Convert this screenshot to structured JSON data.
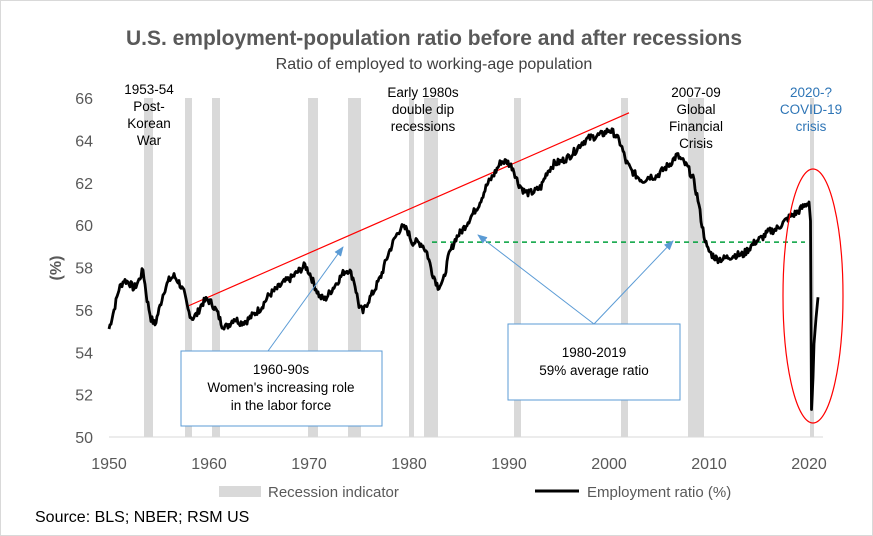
{
  "chart_data": {
    "type": "line",
    "title": "U.S. employment-population ratio before and after recessions",
    "subtitle": "Ratio of employed to working-age population",
    "ylabel": "(%)",
    "xlabel": "",
    "xlim": [
      1950,
      2021
    ],
    "ylim": [
      50,
      66
    ],
    "x_ticks": [
      "1950",
      "1960",
      "1970",
      "1980",
      "1990",
      "2000",
      "2010",
      "2020"
    ],
    "y_ticks": [
      "50",
      "52",
      "54",
      "56",
      "58",
      "60",
      "62",
      "64",
      "66"
    ],
    "grid": false,
    "legend_position": "bottom",
    "legend": {
      "recession": "Recession indicator",
      "ratio": "Employment ratio (%)"
    },
    "source": "Source: BLS; NBER; RSM US",
    "colors": {
      "line": "#000000",
      "recession": "#d9d9d9",
      "trend": "#ff0000",
      "average": "#00a03c",
      "arrow": "#5b9bd5",
      "covid_text": "#2e75b6",
      "ellipse": "#ff0000"
    },
    "recessions": [
      [
        1953.5,
        1954.4
      ],
      [
        1957.6,
        1958.3
      ],
      [
        1960.3,
        1961.1
      ],
      [
        1969.9,
        1970.9
      ],
      [
        1973.9,
        1975.2
      ],
      [
        1980.0,
        1980.5
      ],
      [
        1981.5,
        1982.9
      ],
      [
        1990.5,
        1991.2
      ],
      [
        2001.2,
        2001.9
      ],
      [
        2007.9,
        2009.5
      ],
      [
        2020.1,
        2020.4
      ]
    ],
    "series": [
      {
        "name": "Employment ratio (%)",
        "points": [
          [
            1950.0,
            55.1
          ],
          [
            1950.5,
            56.0
          ],
          [
            1951.0,
            57.0
          ],
          [
            1951.5,
            57.4
          ],
          [
            1952.0,
            57.3
          ],
          [
            1952.5,
            57.0
          ],
          [
            1953.0,
            57.4
          ],
          [
            1953.4,
            57.9
          ],
          [
            1953.8,
            56.5
          ],
          [
            1954.2,
            55.6
          ],
          [
            1954.6,
            55.3
          ],
          [
            1955.0,
            56.0
          ],
          [
            1955.5,
            56.9
          ],
          [
            1956.0,
            57.4
          ],
          [
            1956.5,
            57.6
          ],
          [
            1957.0,
            57.3
          ],
          [
            1957.5,
            56.8
          ],
          [
            1957.9,
            56.0
          ],
          [
            1958.3,
            55.6
          ],
          [
            1958.8,
            55.8
          ],
          [
            1959.3,
            56.3
          ],
          [
            1959.8,
            56.5
          ],
          [
            1960.3,
            56.3
          ],
          [
            1960.8,
            55.9
          ],
          [
            1961.3,
            55.3
          ],
          [
            1961.8,
            55.2
          ],
          [
            1962.5,
            55.6
          ],
          [
            1963.2,
            55.4
          ],
          [
            1963.8,
            55.5
          ],
          [
            1964.5,
            55.8
          ],
          [
            1965.2,
            56.1
          ],
          [
            1966.0,
            56.7
          ],
          [
            1966.8,
            57.0
          ],
          [
            1967.5,
            57.3
          ],
          [
            1968.2,
            57.5
          ],
          [
            1968.9,
            57.8
          ],
          [
            1969.6,
            58.1
          ],
          [
            1970.1,
            57.7
          ],
          [
            1970.6,
            57.1
          ],
          [
            1971.1,
            56.6
          ],
          [
            1971.6,
            56.5
          ],
          [
            1972.2,
            56.9
          ],
          [
            1972.8,
            57.3
          ],
          [
            1973.5,
            57.8
          ],
          [
            1974.0,
            57.9
          ],
          [
            1974.5,
            57.4
          ],
          [
            1975.0,
            56.2
          ],
          [
            1975.4,
            55.9
          ],
          [
            1975.9,
            56.4
          ],
          [
            1976.5,
            56.9
          ],
          [
            1977.2,
            57.6
          ],
          [
            1977.9,
            58.6
          ],
          [
            1978.6,
            59.4
          ],
          [
            1979.2,
            59.9
          ],
          [
            1979.8,
            59.8
          ],
          [
            1980.3,
            59.2
          ],
          [
            1980.8,
            59.2
          ],
          [
            1981.3,
            59.1
          ],
          [
            1981.8,
            58.7
          ],
          [
            1982.3,
            57.8
          ],
          [
            1982.9,
            57.1
          ],
          [
            1983.4,
            57.3
          ],
          [
            1984.0,
            58.6
          ],
          [
            1984.7,
            59.4
          ],
          [
            1985.4,
            59.8
          ],
          [
            1986.2,
            60.4
          ],
          [
            1987.0,
            61.0
          ],
          [
            1987.8,
            61.9
          ],
          [
            1988.5,
            62.4
          ],
          [
            1989.2,
            63.0
          ],
          [
            1989.8,
            63.0
          ],
          [
            1990.4,
            62.7
          ],
          [
            1990.9,
            62.0
          ],
          [
            1991.5,
            61.6
          ],
          [
            1992.0,
            61.5
          ],
          [
            1992.6,
            61.6
          ],
          [
            1993.2,
            61.8
          ],
          [
            1993.8,
            62.5
          ],
          [
            1994.5,
            62.9
          ],
          [
            1995.2,
            63.0
          ],
          [
            1995.9,
            63.2
          ],
          [
            1996.6,
            63.5
          ],
          [
            1997.3,
            63.9
          ],
          [
            1998.0,
            64.1
          ],
          [
            1998.7,
            64.2
          ],
          [
            1999.4,
            64.3
          ],
          [
            2000.0,
            64.5
          ],
          [
            2000.6,
            64.3
          ],
          [
            2001.2,
            63.8
          ],
          [
            2001.7,
            63.0
          ],
          [
            2002.2,
            62.6
          ],
          [
            2002.8,
            62.3
          ],
          [
            2003.4,
            62.1
          ],
          [
            2004.0,
            62.3
          ],
          [
            2004.7,
            62.3
          ],
          [
            2005.4,
            62.6
          ],
          [
            2006.1,
            62.9
          ],
          [
            2006.8,
            63.3
          ],
          [
            2007.4,
            63.0
          ],
          [
            2007.9,
            62.7
          ],
          [
            2008.4,
            62.2
          ],
          [
            2008.9,
            61.2
          ],
          [
            2009.3,
            60.0
          ],
          [
            2009.8,
            58.9
          ],
          [
            2010.3,
            58.6
          ],
          [
            2010.8,
            58.4
          ],
          [
            2011.4,
            58.4
          ],
          [
            2012.0,
            58.5
          ],
          [
            2012.7,
            58.6
          ],
          [
            2013.4,
            58.6
          ],
          [
            2014.0,
            58.9
          ],
          [
            2014.6,
            59.2
          ],
          [
            2015.3,
            59.4
          ],
          [
            2016.0,
            59.7
          ],
          [
            2016.7,
            59.8
          ],
          [
            2017.4,
            60.1
          ],
          [
            2018.1,
            60.4
          ],
          [
            2018.8,
            60.6
          ],
          [
            2019.5,
            60.9
          ],
          [
            2020.0,
            61.1
          ],
          [
            2020.15,
            60.2
          ],
          [
            2020.25,
            51.3
          ],
          [
            2020.4,
            52.8
          ],
          [
            2020.5,
            54.4
          ],
          [
            2020.7,
            55.6
          ],
          [
            2020.9,
            56.6
          ]
        ]
      }
    ],
    "trend_line": {
      "x": [
        1958.0,
        2002.0
      ],
      "y": [
        56.2,
        65.3
      ]
    },
    "average_line": {
      "y": 59.2,
      "x": [
        1982.3,
        2019.6
      ]
    },
    "annotations": {
      "korean": [
        "1953-54",
        "Post-",
        "Korean",
        "War"
      ],
      "early80s": [
        "Early 1980s",
        "double dip",
        "recessions"
      ],
      "gfc": [
        "2007-09",
        "Global",
        "Financial",
        "Crisis"
      ],
      "covid": [
        "2020-?",
        "COVID-19",
        "crisis"
      ]
    },
    "boxes": {
      "women": [
        "1960-90s",
        "Women's increasing role",
        "in the labor force"
      ],
      "average": [
        "1980-2019",
        "59% average ratio"
      ]
    }
  }
}
